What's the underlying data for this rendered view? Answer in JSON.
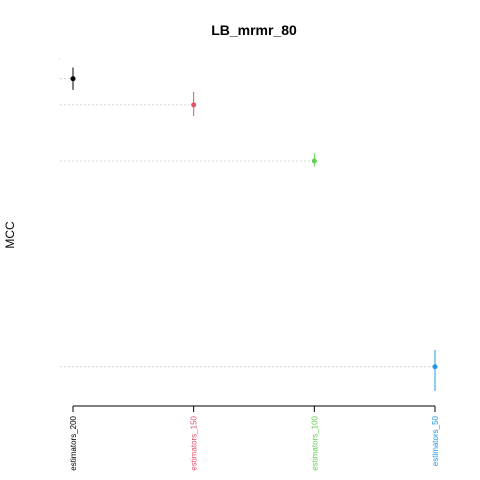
{
  "chart_data": {
    "type": "scatter",
    "title": "LB_mrmr_80",
    "xlabel": "",
    "ylabel": "MCC",
    "categories": [
      "estimators_200",
      "estimators_150",
      "estimators_100",
      "estimators_50"
    ],
    "values": [
      0.995,
      0.981,
      0.951,
      0.841
    ],
    "error_low": [
      0.989,
      0.975,
      0.948,
      0.828
    ],
    "error_high": [
      1.001,
      0.988,
      0.955,
      0.85
    ],
    "colors": [
      "#000000",
      "#DF536B",
      "#61D04F",
      "#2297E6"
    ],
    "ylim": [
      0.82,
      1.005
    ],
    "reference_lines": "dashed grey line from the left edge to each point",
    "y_ticks_shown": false
  }
}
